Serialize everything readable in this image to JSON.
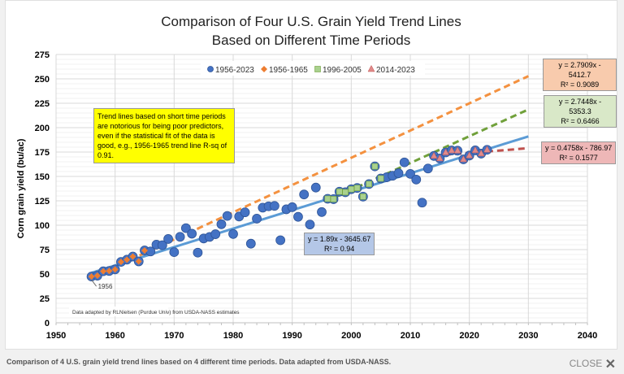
{
  "chart_data": {
    "type": "scatter",
    "title": "Comparison of Four U.S. Grain Yield Trend Lines",
    "subtitle": "Based on Different Time Periods",
    "xlabel": "",
    "ylabel": "Corn grain yield (bu/ac)",
    "xlim": [
      1950,
      2040
    ],
    "ylim": [
      0,
      275
    ],
    "xticks": [
      1950,
      1960,
      1970,
      1980,
      1990,
      2000,
      2010,
      2020,
      2030,
      2040
    ],
    "yticks": [
      0,
      25,
      50,
      75,
      100,
      125,
      150,
      175,
      200,
      225,
      250,
      275
    ],
    "grid": true,
    "legend_position": "top",
    "x": [
      1956,
      1957,
      1958,
      1959,
      1960,
      1961,
      1962,
      1963,
      1964,
      1965,
      1966,
      1967,
      1968,
      1969,
      1970,
      1971,
      1972,
      1973,
      1974,
      1975,
      1976,
      1977,
      1978,
      1979,
      1980,
      1981,
      1982,
      1983,
      1984,
      1985,
      1986,
      1987,
      1988,
      1989,
      1990,
      1991,
      1992,
      1993,
      1994,
      1995,
      1996,
      1997,
      1998,
      1999,
      2000,
      2001,
      2002,
      2003,
      2004,
      2005,
      2006,
      2007,
      2008,
      2009,
      2010,
      2011,
      2012,
      2013,
      2014,
      2015,
      2016,
      2017,
      2018,
      2019,
      2020,
      2021,
      2022,
      2023
    ],
    "y": [
      47.4,
      48.3,
      52.8,
      53.1,
      54.7,
      62.4,
      64.7,
      67.9,
      62.9,
      74.1,
      73.1,
      80.1,
      79.5,
      85.9,
      72.4,
      88.1,
      97.0,
      91.3,
      71.9,
      86.4,
      88.0,
      90.8,
      101.0,
      109.5,
      91.0,
      108.9,
      113.2,
      81.1,
      106.7,
      118.0,
      119.4,
      119.8,
      84.6,
      116.3,
      118.5,
      108.6,
      131.5,
      100.7,
      138.6,
      113.5,
      127.1,
      126.7,
      134.4,
      133.8,
      136.9,
      138.2,
      129.3,
      142.2,
      160.3,
      147.9,
      149.1,
      150.7,
      153.3,
      164.4,
      152.6,
      146.8,
      123.1,
      158.1,
      171.0,
      168.4,
      174.6,
      176.6,
      176.4,
      167.5,
      171.4,
      176.7,
      173.4,
      177.3
    ],
    "series": [
      {
        "name": "1956-2023",
        "range": [
          1956,
          2023
        ],
        "marker": "circle",
        "color": "#4472c4",
        "trend": {
          "slope": 1.89,
          "intercept": -3645.67,
          "equation": "y = 1.89x - 3645.67",
          "r2": "R² = 0.94",
          "line_color": "#5b9bd5",
          "dashed": false,
          "extend_to": 2030,
          "box_color": "#b4c7e7"
        }
      },
      {
        "name": "1956-1965",
        "range": [
          1956,
          1965
        ],
        "marker": "diamond",
        "color": "#ed7d31",
        "trend": {
          "slope": 2.7909,
          "intercept": -5412.7,
          "equation": "y = 2.7909x - 5412.7",
          "r2": "R² = 0.9089",
          "line_color": "#f4913f",
          "dashed": true,
          "extend_to": 2030,
          "box_color": "#f8cbad"
        }
      },
      {
        "name": "1996-2005",
        "range": [
          1996,
          2005
        ],
        "marker": "square",
        "color": "#a9d18e",
        "trend": {
          "slope": 2.7448,
          "intercept": -5353.3,
          "equation": "y = 2.7448x - 5353.3",
          "r2": "R² = 0.6466",
          "line_color": "#70a03a",
          "dashed": true,
          "extend_to": 2030,
          "box_color": "#d9e8c8"
        }
      },
      {
        "name": "2014-2023",
        "range": [
          2014,
          2023
        ],
        "marker": "triangle",
        "color": "#e08a8a",
        "trend": {
          "slope": 0.4758,
          "intercept": -786.97,
          "equation": "y = 0.4758x - 786.97",
          "r2": "R² = 0.1577",
          "line_color": "#c0504d",
          "dashed": true,
          "extend_to": 2030,
          "box_color": "#eeb7b7"
        }
      }
    ],
    "annotations": {
      "note": "Trend lines based on short time periods are notorious for being poor predictors, even if the statistical fit of the data is good, e.g., 1956-1965 trend line R-sq of 0.91.",
      "first_point_label": "1956",
      "source": "Data adapted by RLNielsen (Purdue Univ) from USDA-NASS estimates"
    }
  },
  "caption": "Comparison of 4 U.S. grain yield trend lines based on 4 different time periods. Data adapted from USDA-NASS.",
  "close_label": "CLOSE",
  "close_icon": "x-icon"
}
